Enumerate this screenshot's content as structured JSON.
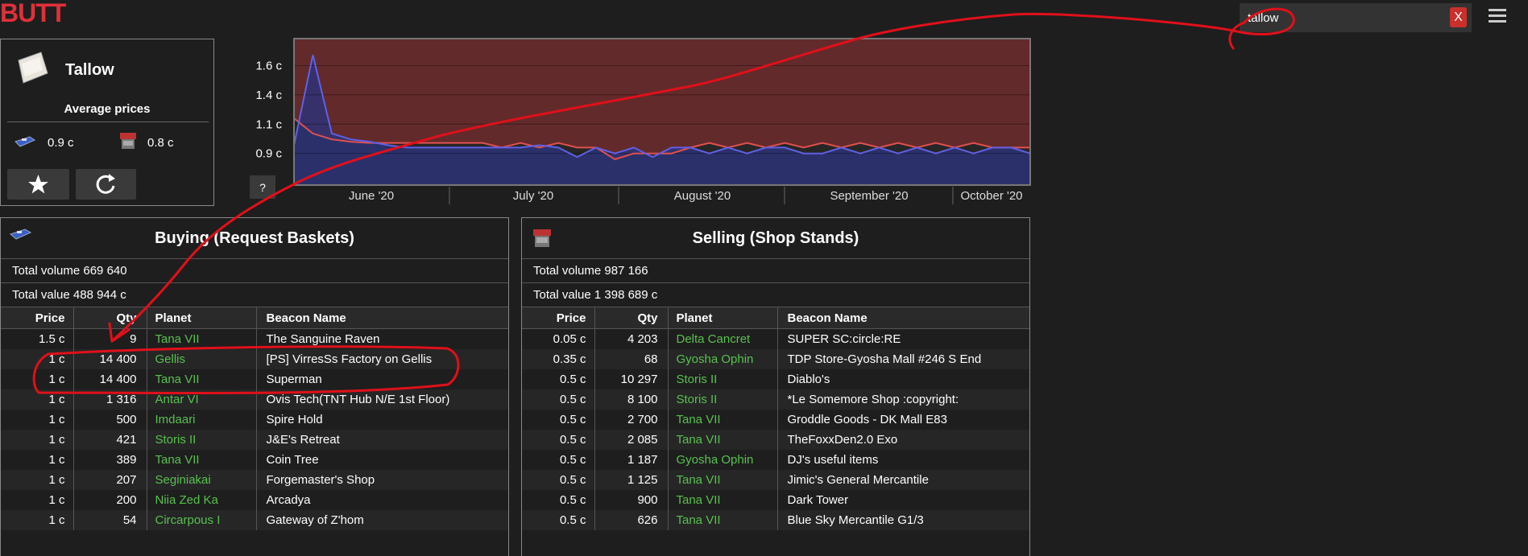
{
  "header": {
    "logo": "BUTT",
    "search": "tallow",
    "clear": "X"
  },
  "item": {
    "name": "Tallow",
    "avg_title": "Average prices",
    "buy_price": "0.9 c",
    "sell_price": "0.8 c"
  },
  "price_chart": {
    "type": "area",
    "ylim": [
      0.61,
      1.86
    ],
    "yticks": [
      {
        "value": 1.63,
        "label": "1.6 c"
      },
      {
        "value": 1.38,
        "label": "1.4 c"
      },
      {
        "value": 1.13,
        "label": "1.1 c"
      },
      {
        "value": 0.88,
        "label": "0.9 c"
      }
    ],
    "x_labels": [
      "June '20",
      "July '20",
      "August '20",
      "September '20",
      "October '20"
    ],
    "help": "?",
    "series": [
      {
        "color": "#e0504f",
        "fill": "#6e2b2d",
        "fill_to": "top",
        "values": [
          1.18,
          1.05,
          1.0,
          0.98,
          0.97,
          0.97,
          0.97,
          0.97,
          0.97,
          0.97,
          0.97,
          0.93,
          0.97,
          0.93,
          0.97,
          0.93,
          0.93,
          0.83,
          0.88,
          0.88,
          0.88,
          0.93,
          0.97,
          0.93,
          0.97,
          0.93,
          0.97,
          0.93,
          0.97,
          0.93,
          0.97,
          0.93,
          0.97,
          0.93,
          0.97,
          0.93,
          0.97,
          0.93,
          0.93,
          0.93
        ]
      },
      {
        "color": "#6060e6",
        "fill": "#2e3277",
        "fill_to": "bottom",
        "values": [
          0.95,
          1.72,
          1.05,
          1.0,
          0.98,
          0.95,
          0.93,
          0.93,
          0.93,
          0.93,
          0.93,
          0.93,
          0.93,
          0.95,
          0.93,
          0.85,
          0.93,
          0.88,
          0.93,
          0.85,
          0.93,
          0.93,
          0.88,
          0.93,
          0.88,
          0.93,
          0.93,
          0.88,
          0.88,
          0.93,
          0.88,
          0.93,
          0.88,
          0.93,
          0.88,
          0.93,
          0.88,
          0.93,
          0.93,
          0.88
        ]
      }
    ]
  },
  "buying": {
    "title": "Buying (Request Baskets)",
    "total_volume": "Total volume 669 640",
    "total_value": "Total value 488 944 c",
    "columns": [
      "Price",
      "Qty",
      "Planet",
      "Beacon Name"
    ],
    "rows": [
      [
        "1.5 c",
        "9",
        "Tana VII",
        "The Sanguine Raven"
      ],
      [
        "1 c",
        "14 400",
        "Gellis",
        "[PS] VirresSs Factory on Gellis"
      ],
      [
        "1 c",
        "14 400",
        "Tana VII",
        "Superman"
      ],
      [
        "1 c",
        "1 316",
        "Antar VI",
        "Ovis Tech(TNT Hub N/E 1st Floor)"
      ],
      [
        "1 c",
        "500",
        "Imdaari",
        "Spire Hold"
      ],
      [
        "1 c",
        "421",
        "Storis II",
        "J&E's Retreat"
      ],
      [
        "1 c",
        "389",
        "Tana VII",
        "Coin Tree"
      ],
      [
        "1 c",
        "207",
        "Seginiakai",
        "Forgemaster's Shop"
      ],
      [
        "1 c",
        "200",
        "Niia Zed Ka",
        "Arcadya"
      ],
      [
        "1 c",
        "54",
        "Circarpous I",
        "Gateway of Z'hom"
      ]
    ]
  },
  "selling": {
    "title": "Selling (Shop Stands)",
    "total_volume": "Total volume 987 166",
    "total_value": "Total value 1 398 689 c",
    "columns": [
      "Price",
      "Qty",
      "Planet",
      "Beacon Name"
    ],
    "rows": [
      [
        "0.05 c",
        "4 203",
        "Delta Cancret",
        "SUPER SC:circle:RE"
      ],
      [
        "0.35 c",
        "68",
        "Gyosha Ophin",
        "TDP Store-Gyosha Mall #246 S End"
      ],
      [
        "0.5 c",
        "10 297",
        "Storis II",
        "Diablo's"
      ],
      [
        "0.5 c",
        "8 100",
        "Storis II",
        "*Le Somemore Shop :copyright:"
      ],
      [
        "0.5 c",
        "2 700",
        "Tana VII",
        "Groddle Goods - DK Mall E83"
      ],
      [
        "0.5 c",
        "2 085",
        "Tana VII",
        "TheFoxxDen2.0 Exo"
      ],
      [
        "0.5 c",
        "1 187",
        "Gyosha Ophin",
        "DJ's useful items"
      ],
      [
        "0.5 c",
        "1 125",
        "Tana VII",
        "Jimic's General Mercantile"
      ],
      [
        "0.5 c",
        "900",
        "Tana VII",
        "Dark Tower"
      ],
      [
        "0.5 c",
        "626",
        "Tana VII",
        "Blue Sky Mercantile G1/3"
      ]
    ]
  }
}
